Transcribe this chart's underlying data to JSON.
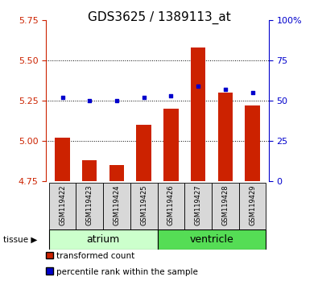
{
  "title": "GDS3625 / 1389113_at",
  "samples": [
    "GSM119422",
    "GSM119423",
    "GSM119424",
    "GSM119425",
    "GSM119426",
    "GSM119427",
    "GSM119428",
    "GSM119429"
  ],
  "red_values": [
    5.02,
    4.88,
    4.85,
    5.1,
    5.2,
    5.58,
    5.3,
    5.22
  ],
  "blue_pct": [
    52,
    50,
    50,
    52,
    53,
    59,
    57,
    55
  ],
  "baseline": 4.75,
  "ylim": [
    4.75,
    5.75
  ],
  "yticks": [
    4.75,
    5.0,
    5.25,
    5.5,
    5.75
  ],
  "right_yticks": [
    0,
    25,
    50,
    75,
    100
  ],
  "right_ylim": [
    0,
    100
  ],
  "bar_color": "#cc2200",
  "dot_color": "#0000cc",
  "atrium_color": "#ccffcc",
  "ventricle_color": "#55dd55",
  "bg_color": "#d8d8d8",
  "left_axis_color": "#cc2200",
  "right_axis_color": "#0000cc",
  "title_fontsize": 11,
  "tick_fontsize": 8,
  "label_fontsize": 9,
  "sample_fontsize": 6
}
